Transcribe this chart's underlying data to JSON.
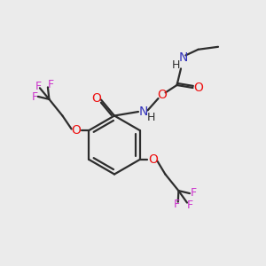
{
  "bg_color": "#ebebeb",
  "bond_color": "#2d2d2d",
  "oxygen_color": "#ee1111",
  "nitrogen_color": "#3333bb",
  "fluorine_color": "#cc33cc",
  "carbon_color": "#2d2d2d",
  "line_width": 1.6,
  "font_size": 10,
  "fig_w": 3.0,
  "fig_h": 3.0,
  "dpi": 100,
  "xlim": [
    0,
    10
  ],
  "ylim": [
    0,
    10
  ]
}
